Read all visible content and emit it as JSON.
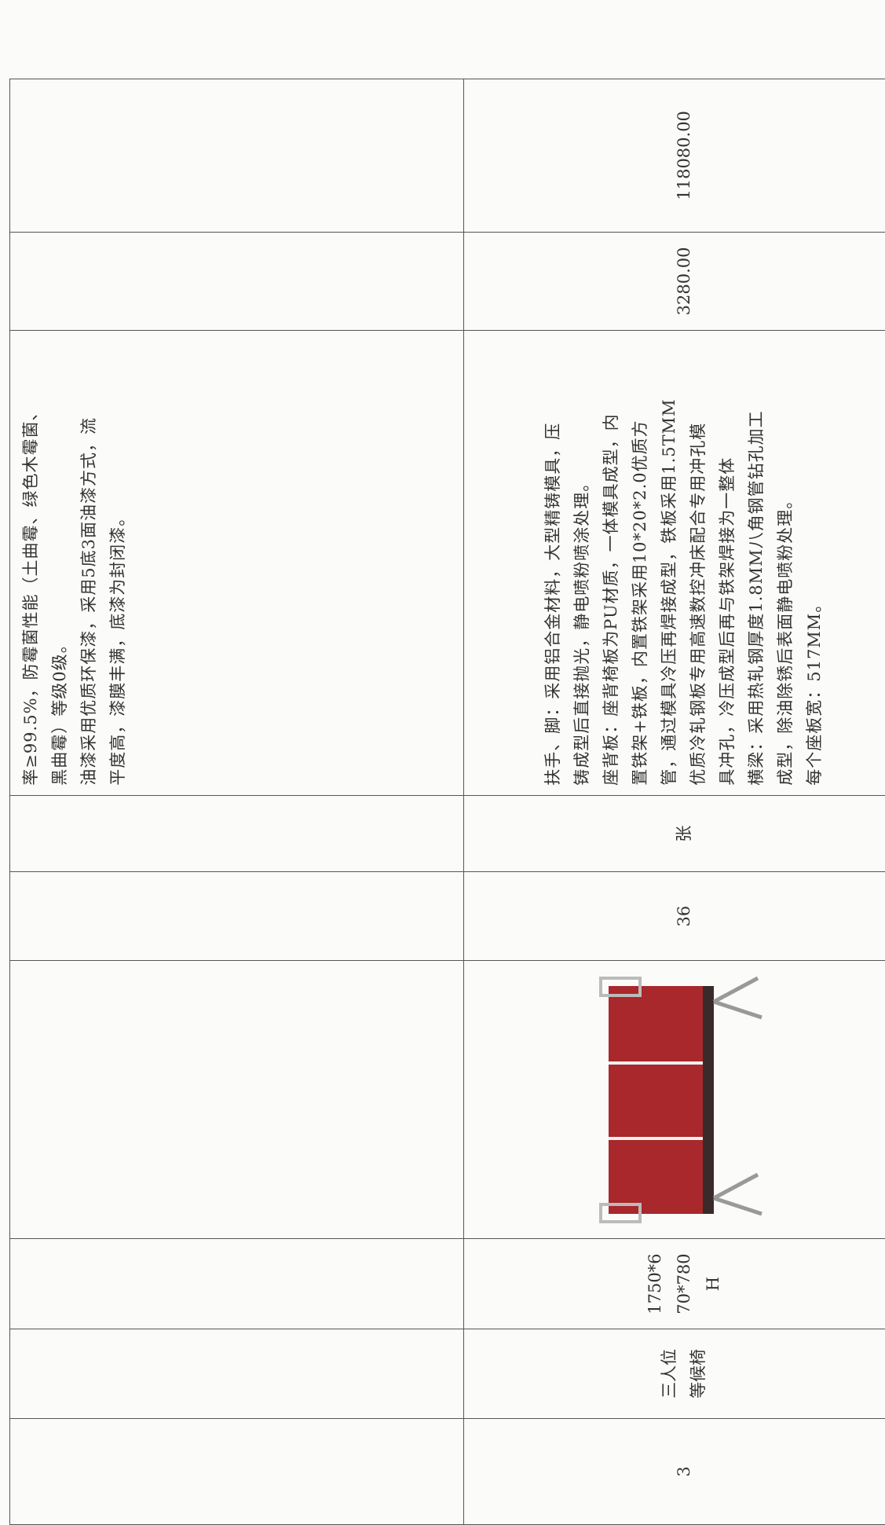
{
  "table": {
    "rows": [
      {
        "description": [
          "率≥99.5%，防霉菌性能（土曲霉、绿色木霉菌、",
          "黑曲霉）等级0级。",
          "油漆采用优质环保漆，采用5底3面油漆方式，流",
          "平度高，漆膜丰满，底漆为封闭漆。"
        ]
      },
      {
        "index": "3",
        "name": [
          "三人位",
          "等候椅"
        ],
        "size": [
          "1750*6",
          "70*780",
          "H"
        ],
        "quantity": "36",
        "unit": "张",
        "description": [
          "扶手、脚：采用铝合金材料，大型精铸模具，压",
          "铸成型后直接抛光，静电喷粉喷涂处理。",
          "座背板：座背椅板为PU材质，一体模具成型，内",
          "置铁架+铁板，内置铁架采用10*20*2.0优质方",
          "管，通过模具冷压再焊接成型，铁板采用1.5TMM",
          "优质冷轧钢板专用高速数控冲床配合专用冲孔模",
          "具冲孔，冷压成型后再与铁架焊接为一整体",
          "横梁：采用热轧钢厚度1.8MM八角钢管钻孔加工",
          "成型，除油除锈后表面静电喷粉处理。",
          "每个座板宽：517MM。"
        ],
        "unit_price": "3280.00",
        "total": "118080.00"
      }
    ]
  }
}
